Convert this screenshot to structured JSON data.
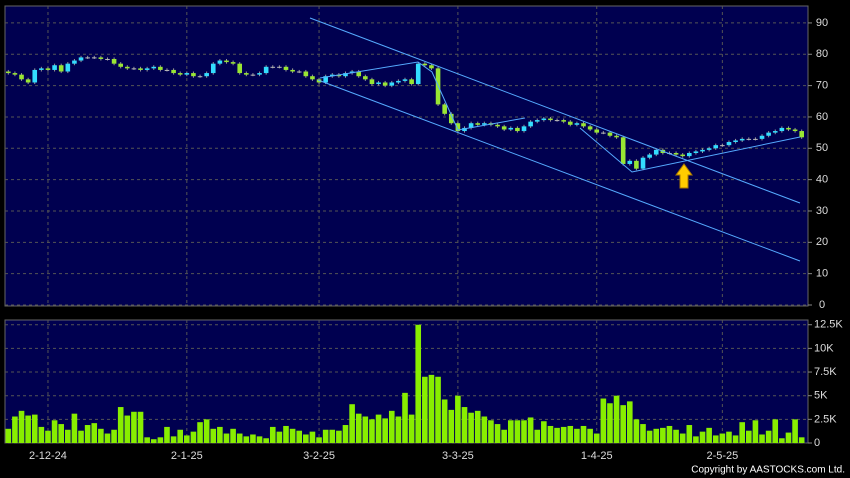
{
  "chart_data": [
    {
      "type": "candlestick",
      "open": [
        74.5,
        74,
        73.5,
        72,
        71,
        75,
        75.5,
        75,
        76.5,
        74.5,
        77,
        78,
        79,
        79,
        79,
        78.5,
        78.5,
        77,
        76,
        75.5,
        75.5,
        75,
        75.5,
        76,
        75,
        75,
        74,
        73.5,
        74,
        73,
        73,
        74,
        77,
        78,
        77.5,
        77,
        74,
        73.5,
        73.5,
        74,
        76,
        76,
        76,
        75,
        74.5,
        74.5,
        73,
        72,
        71,
        73,
        73.5,
        73,
        74,
        74.5,
        73,
        72,
        70.5,
        71,
        70,
        71,
        71.5,
        72,
        70.5,
        77,
        76.5,
        75.5,
        64,
        61,
        58,
        55.5,
        56.5,
        58,
        57.5,
        58,
        57.5,
        57,
        56,
        56.5,
        55.5,
        57,
        58.5,
        59,
        59.5,
        59,
        59,
        58.5,
        57.5,
        58,
        57,
        56,
        55,
        55,
        54,
        53.5,
        45,
        46,
        43.5,
        47,
        48,
        49.5,
        48.5,
        48.5,
        48,
        47.5,
        48.5,
        49,
        49.5,
        50,
        51,
        51,
        52,
        52.5,
        53,
        53,
        53,
        54,
        55,
        55.5,
        56.5,
        56,
        55.5
      ],
      "high": [
        75,
        74.5,
        74,
        72.5,
        75.5,
        76,
        76,
        77,
        77,
        77.5,
        78.5,
        79.5,
        79.5,
        79.5,
        79.5,
        79,
        79,
        77.5,
        76.5,
        76,
        76,
        76,
        76.5,
        76.5,
        75.5,
        75.5,
        74.5,
        74.5,
        74.5,
        73.5,
        74.5,
        77.5,
        78.5,
        78.5,
        78,
        77.5,
        74.5,
        74,
        74.5,
        76.5,
        76.5,
        76.5,
        76.5,
        75.5,
        75,
        75,
        73.5,
        72.5,
        73.5,
        74,
        74,
        74.5,
        75,
        75,
        73.5,
        72.5,
        71.5,
        71.5,
        71.5,
        72,
        72.5,
        72.5,
        77.5,
        77.5,
        77,
        76,
        64.5,
        61.5,
        58.5,
        57,
        58.5,
        58.5,
        58.5,
        58.5,
        58,
        57.5,
        57,
        57,
        57.5,
        59,
        59.5,
        60,
        60,
        59.5,
        59.5,
        59,
        58.5,
        58.5,
        57.5,
        56.5,
        55.5,
        55.5,
        54.5,
        54,
        46.5,
        46.5,
        47.5,
        48.5,
        50,
        50,
        49,
        49,
        48.5,
        49,
        49.5,
        50,
        50.5,
        51.5,
        51.5,
        52.5,
        53,
        53.5,
        53.5,
        53.5,
        54.5,
        55.5,
        56,
        57,
        57,
        56.5,
        56
      ],
      "low": [
        73.5,
        73,
        71.5,
        70.5,
        70.5,
        74.5,
        74.5,
        74.5,
        74,
        74,
        76.5,
        77.5,
        78.5,
        78.5,
        78,
        78,
        76.5,
        75.5,
        75,
        75,
        74.5,
        74.5,
        75,
        74.5,
        74.5,
        73.5,
        73,
        73,
        72.5,
        72.5,
        72.5,
        73.5,
        76.5,
        77,
        76.5,
        73.5,
        73,
        73,
        73,
        73.5,
        75.5,
        75.5,
        74.5,
        74,
        74,
        72.5,
        71.5,
        70.5,
        70.5,
        72.5,
        72.5,
        72.5,
        73.5,
        72.5,
        71.5,
        70,
        70,
        69.5,
        69.5,
        70.5,
        71,
        70,
        70,
        76,
        75,
        63.5,
        60.5,
        57.5,
        55,
        55,
        56,
        57,
        57,
        57,
        56.5,
        55.5,
        55.5,
        55,
        55,
        56.5,
        58,
        58.5,
        58.5,
        58.5,
        58,
        57,
        57,
        56.5,
        55.5,
        54.5,
        54.5,
        53.5,
        53,
        44.5,
        44.5,
        43,
        43,
        46.5,
        47.5,
        48,
        48,
        47.5,
        47,
        47,
        48,
        48.5,
        49,
        49.5,
        50.5,
        50.5,
        51.5,
        52,
        52.5,
        52.5,
        52.5,
        53.5,
        54.5,
        55,
        55.5,
        55,
        53
      ],
      "close": [
        74,
        73.5,
        72,
        71,
        75,
        75.5,
        75,
        76.5,
        74.5,
        77,
        78,
        79,
        79,
        79,
        78.5,
        78.5,
        77,
        76,
        75.5,
        75.5,
        75,
        75.5,
        76,
        75,
        75,
        74,
        73.5,
        74,
        73,
        73,
        74,
        77,
        78,
        77.5,
        77,
        74,
        73.5,
        73.5,
        74,
        76,
        76,
        76,
        75,
        74.5,
        74.5,
        73,
        72,
        71,
        73,
        73.5,
        73,
        74,
        74.5,
        73,
        72,
        70.5,
        71,
        70,
        71,
        71.5,
        72,
        70.5,
        77,
        76.5,
        75.5,
        64,
        61,
        58,
        55.5,
        56.5,
        58,
        57.5,
        58,
        57.5,
        57,
        56,
        56.5,
        55.5,
        57,
        58.5,
        59,
        59.5,
        59,
        59,
        58.5,
        57.5,
        58,
        57,
        56,
        55,
        55,
        54,
        53.5,
        45,
        46,
        43.5,
        47,
        48,
        49.5,
        48.5,
        48.5,
        48,
        47.5,
        48.5,
        49,
        49.5,
        50,
        51,
        51,
        52,
        52.5,
        53,
        53,
        53,
        54,
        55,
        55.5,
        56.5,
        56,
        55.5,
        53.5
      ],
      "up_color": "#33ddff",
      "down_color": "#99e633",
      "ylim": [
        0,
        95.4
      ],
      "yticks": [
        0,
        10,
        20,
        30,
        40,
        50,
        60,
        70,
        80,
        90
      ],
      "grid": true
    },
    {
      "type": "bar",
      "categories": [
        null,
        null,
        null,
        null,
        null,
        null,
        "2-12-24",
        null,
        null,
        null,
        null,
        null,
        null,
        null,
        null,
        null,
        null,
        null,
        null,
        null,
        null,
        null,
        null,
        null,
        null,
        null,
        null,
        "2-1-25",
        null,
        null,
        null,
        null,
        null,
        null,
        null,
        null,
        null,
        null,
        null,
        null,
        null,
        null,
        null,
        null,
        null,
        null,
        null,
        "3-2-25",
        null,
        null,
        null,
        null,
        null,
        null,
        null,
        null,
        null,
        null,
        null,
        null,
        null,
        null,
        null,
        null,
        null,
        null,
        null,
        null,
        "3-3-25",
        null,
        null,
        null,
        null,
        null,
        null,
        null,
        null,
        null,
        null,
        null,
        null,
        null,
        null,
        null,
        null,
        null,
        null,
        null,
        null,
        "1-4-25",
        null,
        null,
        null,
        null,
        null,
        null,
        null,
        null,
        null,
        null,
        null,
        null,
        null,
        null,
        null,
        null,
        null,
        null,
        "2-5-25",
        null,
        null,
        null,
        null,
        null,
        null,
        null,
        null,
        null,
        null,
        null,
        null
      ],
      "values": [
        1500,
        2800,
        3400,
        2900,
        3000,
        1700,
        1300,
        2400,
        2000,
        1400,
        3100,
        1300,
        1900,
        2100,
        1500,
        1000,
        1400,
        3800,
        2900,
        3300,
        3300,
        600,
        400,
        600,
        1700,
        700,
        1400,
        800,
        1200,
        2200,
        2500,
        1500,
        1700,
        1000,
        1500,
        1000,
        700,
        900,
        700,
        500,
        1700,
        1200,
        1800,
        1500,
        1300,
        900,
        1200,
        600,
        1400,
        1400,
        1300,
        1900,
        4100,
        3100,
        2800,
        2500,
        3000,
        2600,
        3400,
        2800,
        5300,
        3000,
        12500,
        7000,
        7200,
        7000,
        4600,
        3500,
        5000,
        3800,
        3200,
        3400,
        2800,
        2400,
        2000,
        1400,
        2400,
        2400,
        2400,
        2700,
        1400,
        2300,
        1800,
        1600,
        1700,
        1800,
        1500,
        1800,
        1500,
        1000,
        4700,
        4200,
        5000,
        4000,
        4400,
        2500,
        2000,
        1300,
        1500,
        1600,
        1800,
        1400,
        1000,
        1900,
        700,
        1200,
        1600,
        800,
        1000,
        1200,
        800,
        2200,
        1300,
        2400,
        900,
        1300,
        2500,
        500,
        1100,
        2500,
        600
      ],
      "color": "#88ee00",
      "ylim": [
        0,
        13000
      ],
      "yticks": [
        0,
        {
          "value": 2500,
          "label": "2.5K"
        },
        {
          "value": 5000,
          "label": "5K"
        },
        {
          "value": 7500,
          "label": "7.5K"
        },
        {
          "value": 10000,
          "label": "10K"
        },
        {
          "value": 12500,
          "label": "12.5K"
        }
      ],
      "grid": true,
      "footer": "Copyright by AASTOCKS.com Ltd."
    }
  ]
}
